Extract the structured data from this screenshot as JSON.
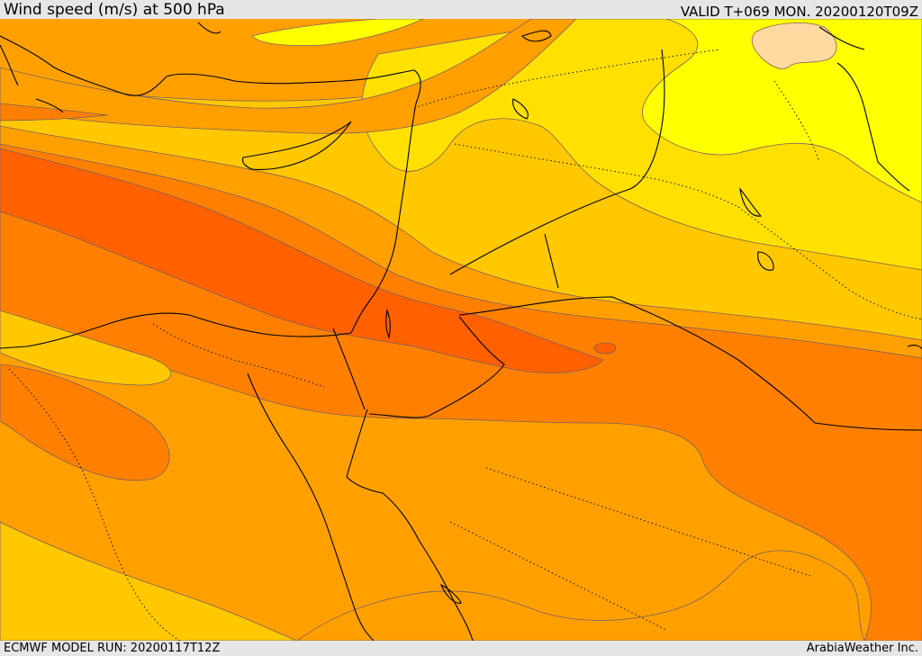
{
  "header": {
    "title": "Wind speed (m/s) at 500 hPa",
    "valid": "VALID T+069 MON. 20200120T09Z"
  },
  "footer": {
    "model_run": "ECMWF MODEL RUN: 20200117T12Z",
    "credit": "ArabiaWeather Inc."
  },
  "colors": {
    "band_1": "#ffff00",
    "band_2": "#ffe000",
    "band_3": "#ffc800",
    "band_4": "#ffa000",
    "band_5": "#ff8000",
    "band_6": "#ff6000",
    "band_peak": "#ffd9a0",
    "contour": "#7f5f5f",
    "coastline": "#000000"
  }
}
